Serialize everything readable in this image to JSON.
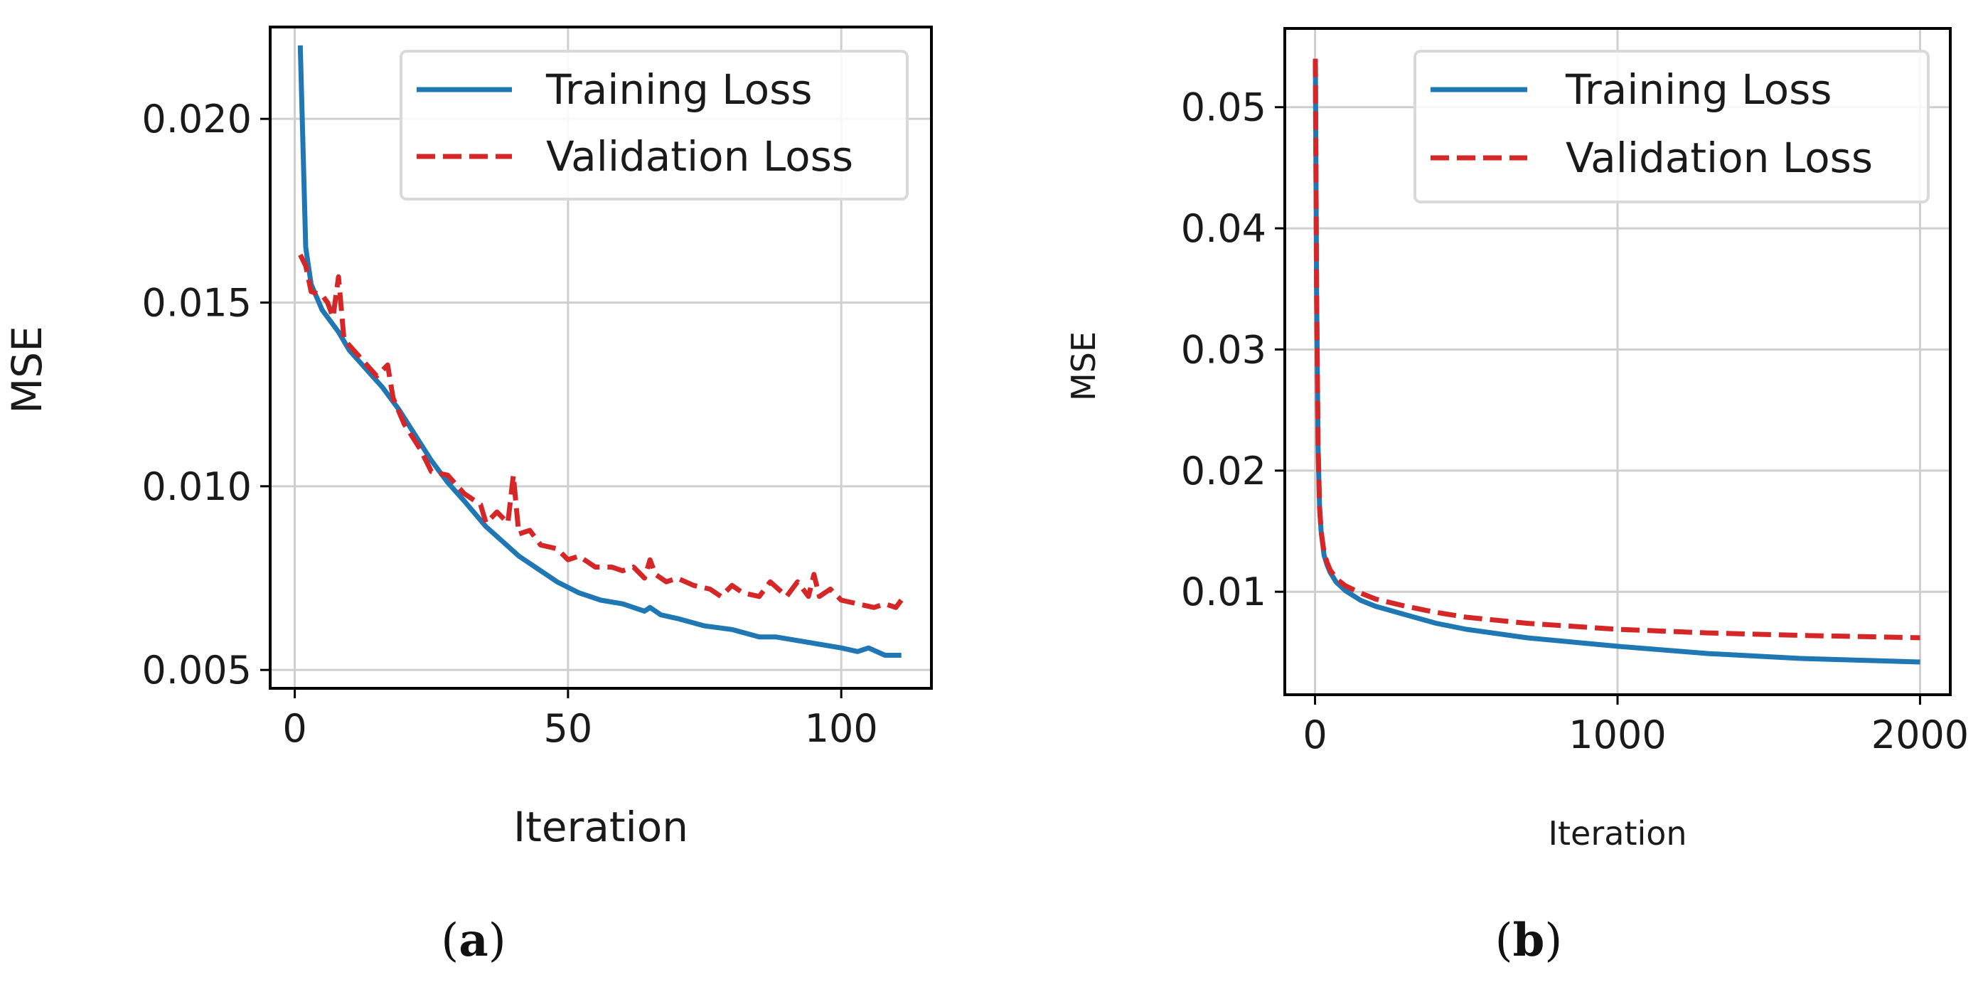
{
  "chart_data": [
    {
      "type": "line",
      "panel_label": "(a)",
      "title": "",
      "xlabel": "Iteration",
      "ylabel": "MSE",
      "xlim": [
        -4.5,
        116.5
      ],
      "ylim": [
        0.0045,
        0.0225
      ],
      "xticks": [
        0,
        50,
        100
      ],
      "xtick_labels": [
        "0",
        "50",
        "100"
      ],
      "yticks": [
        0.005,
        0.01,
        0.015,
        0.02
      ],
      "ytick_labels": [
        "0.005",
        "0.010",
        "0.015",
        "0.020"
      ],
      "grid": true,
      "legend_position": "top-right",
      "series": [
        {
          "name": "Training Loss",
          "color": "#1f77b4",
          "style": "solid",
          "x": [
            1,
            2,
            3,
            5,
            8,
            10,
            13,
            16,
            19,
            22,
            25,
            28,
            31,
            35,
            38,
            41,
            45,
            48,
            52,
            56,
            60,
            64,
            65,
            67,
            70,
            75,
            80,
            85,
            88,
            92,
            96,
            100,
            103,
            105,
            108,
            111
          ],
          "y": [
            0.022,
            0.0165,
            0.0155,
            0.0148,
            0.0142,
            0.0137,
            0.0132,
            0.0127,
            0.0121,
            0.0114,
            0.0107,
            0.0101,
            0.0096,
            0.0089,
            0.0085,
            0.0081,
            0.0077,
            0.0074,
            0.0071,
            0.0069,
            0.0068,
            0.0066,
            0.0067,
            0.0065,
            0.0064,
            0.0062,
            0.0061,
            0.0059,
            0.0059,
            0.0058,
            0.0057,
            0.0056,
            0.0055,
            0.0056,
            0.0054,
            0.0054
          ]
        },
        {
          "name": "Validation Loss",
          "color": "#d62728",
          "style": "dashed",
          "x": [
            1,
            2,
            3,
            5,
            6,
            7,
            8,
            9,
            12,
            15,
            17,
            18,
            20,
            23,
            25,
            28,
            31,
            34,
            35,
            37,
            39,
            40,
            41,
            43,
            45,
            48,
            50,
            52,
            55,
            58,
            60,
            62,
            64,
            65,
            66,
            68,
            70,
            73,
            76,
            78,
            80,
            82,
            85,
            87,
            90,
            92,
            94,
            95,
            96,
            98,
            100,
            103,
            106,
            108,
            110,
            111
          ],
          "y": [
            0.0163,
            0.016,
            0.0153,
            0.0152,
            0.015,
            0.0146,
            0.0157,
            0.014,
            0.0135,
            0.013,
            0.0133,
            0.0124,
            0.0117,
            0.011,
            0.0104,
            0.0103,
            0.0098,
            0.0095,
            0.009,
            0.0093,
            0.009,
            0.0103,
            0.0087,
            0.0088,
            0.0084,
            0.0083,
            0.008,
            0.0081,
            0.0078,
            0.0078,
            0.0077,
            0.0078,
            0.0075,
            0.008,
            0.0076,
            0.0074,
            0.0075,
            0.0073,
            0.0072,
            0.007,
            0.0073,
            0.0071,
            0.007,
            0.0074,
            0.007,
            0.0074,
            0.007,
            0.0076,
            0.007,
            0.0072,
            0.0069,
            0.0068,
            0.0067,
            0.0068,
            0.0067,
            0.0069
          ]
        }
      ]
    },
    {
      "type": "line",
      "panel_label": "(b)",
      "title": "",
      "xlabel": "Iteration",
      "ylabel": "MSE",
      "xlim": [
        -100,
        2100
      ],
      "ylim": [
        0.0015,
        0.0565
      ],
      "xticks": [
        0,
        1000,
        2000
      ],
      "xtick_labels": [
        "0",
        "1000",
        "2000"
      ],
      "yticks": [
        0.01,
        0.02,
        0.03,
        0.04,
        0.05
      ],
      "ytick_labels": [
        "0.01",
        "0.02",
        "0.03",
        "0.04",
        "0.05"
      ],
      "grid": true,
      "legend_position": "top-right",
      "series": [
        {
          "name": "Training Loss",
          "color": "#1f77b4",
          "style": "solid",
          "x": [
            1,
            5,
            10,
            15,
            20,
            30,
            40,
            50,
            70,
            100,
            150,
            200,
            300,
            400,
            500,
            700,
            1000,
            1300,
            1600,
            2000
          ],
          "y": [
            0.054,
            0.035,
            0.022,
            0.017,
            0.015,
            0.013,
            0.0122,
            0.0116,
            0.0108,
            0.0101,
            0.0093,
            0.0088,
            0.0081,
            0.0074,
            0.0069,
            0.0062,
            0.0055,
            0.0049,
            0.0045,
            0.0042
          ]
        },
        {
          "name": "Validation Loss",
          "color": "#d62728",
          "style": "dashed",
          "x": [
            1,
            5,
            10,
            15,
            20,
            30,
            40,
            50,
            70,
            100,
            150,
            200,
            300,
            400,
            500,
            700,
            1000,
            1300,
            1600,
            2000
          ],
          "y": [
            0.054,
            0.035,
            0.022,
            0.017,
            0.015,
            0.0132,
            0.0124,
            0.0118,
            0.0111,
            0.0105,
            0.0099,
            0.0094,
            0.0088,
            0.0083,
            0.0079,
            0.0074,
            0.0069,
            0.0066,
            0.0064,
            0.0062
          ]
        }
      ]
    }
  ]
}
